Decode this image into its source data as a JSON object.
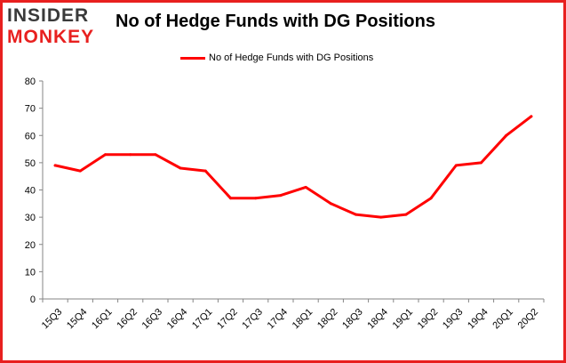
{
  "logo": {
    "line1": "INSIDER",
    "line2": "MONKEY"
  },
  "colors": {
    "series": "#ff0000",
    "border": "#e8201f",
    "logo_red": "#e8201f",
    "logo_dark": "#3a3a3a",
    "grid": "#d9d9d9"
  },
  "chart_data": {
    "type": "line",
    "title": "No of Hedge Funds with DG Positions",
    "xlabel": "",
    "ylabel": "",
    "ylim": [
      0,
      80
    ],
    "yticks": [
      0,
      10,
      20,
      30,
      40,
      50,
      60,
      70,
      80
    ],
    "grid": false,
    "legend_position": "top-center",
    "categories": [
      "15Q3",
      "15Q4",
      "16Q1",
      "16Q2",
      "16Q3",
      "16Q4",
      "17Q1",
      "17Q2",
      "17Q3",
      "17Q4",
      "18Q1",
      "18Q2",
      "18Q3",
      "18Q4",
      "19Q1",
      "19Q2",
      "19Q3",
      "19Q4",
      "20Q1",
      "20Q2"
    ],
    "series": [
      {
        "name": "No of Hedge Funds with DG Positions",
        "values": [
          49,
          47,
          53,
          53,
          53,
          48,
          47,
          37,
          37,
          38,
          41,
          35,
          31,
          30,
          31,
          37,
          49,
          50,
          60,
          67
        ]
      }
    ]
  }
}
